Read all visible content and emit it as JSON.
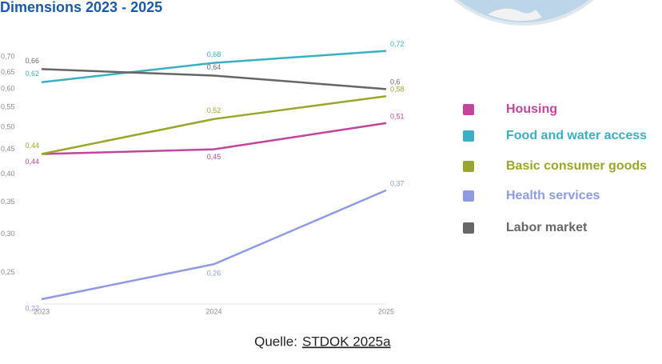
{
  "chart_data": {
    "type": "line",
    "title": "Dimensions 2023 - 2025",
    "categories": [
      "2023",
      "2024",
      "2025"
    ],
    "series": [
      {
        "name": "Housing",
        "color": "#c2459c",
        "values": [
          0.44,
          0.45,
          0.51
        ],
        "value_labels": [
          "0,44",
          "0,45",
          "0,51"
        ]
      },
      {
        "name": "Food and water access",
        "color": "#3aafc4",
        "values": [
          0.62,
          0.68,
          0.72
        ],
        "value_labels": [
          "0,62",
          "0,68",
          "0,72"
        ]
      },
      {
        "name": "Basic consumer goods",
        "color": "#9aa62a",
        "values": [
          0.44,
          0.52,
          0.58
        ],
        "value_labels": [
          "0,44",
          "0,52",
          "0,58"
        ]
      },
      {
        "name": "Health services",
        "color": "#8e9be2",
        "values": [
          0.22,
          0.26,
          0.37
        ],
        "value_labels": [
          "0,22",
          "0,26",
          "0,37"
        ]
      },
      {
        "name": "Labor market",
        "color": "#666666",
        "values": [
          0.66,
          0.64,
          0.6
        ],
        "value_labels": [
          "0,66",
          "0,64",
          "0,6"
        ]
      }
    ],
    "ylim": [
      0.215,
      0.73
    ],
    "log_scale": true,
    "yticks": [
      {
        "value": 0.7,
        "label": "0,70"
      },
      {
        "value": 0.65,
        "label": "0,65"
      },
      {
        "value": 0.6,
        "label": "0,60"
      },
      {
        "value": 0.55,
        "label": "0,55"
      },
      {
        "value": 0.5,
        "label": "0,50"
      },
      {
        "value": 0.45,
        "label": "0,45"
      },
      {
        "value": 0.4,
        "label": "0,40"
      },
      {
        "value": 0.35,
        "label": "0,35"
      },
      {
        "value": 0.3,
        "label": "0,30"
      },
      {
        "value": 0.25,
        "label": "0,25"
      }
    ],
    "source_prefix": "Quelle:",
    "source_link": "STDOK 2025a"
  }
}
